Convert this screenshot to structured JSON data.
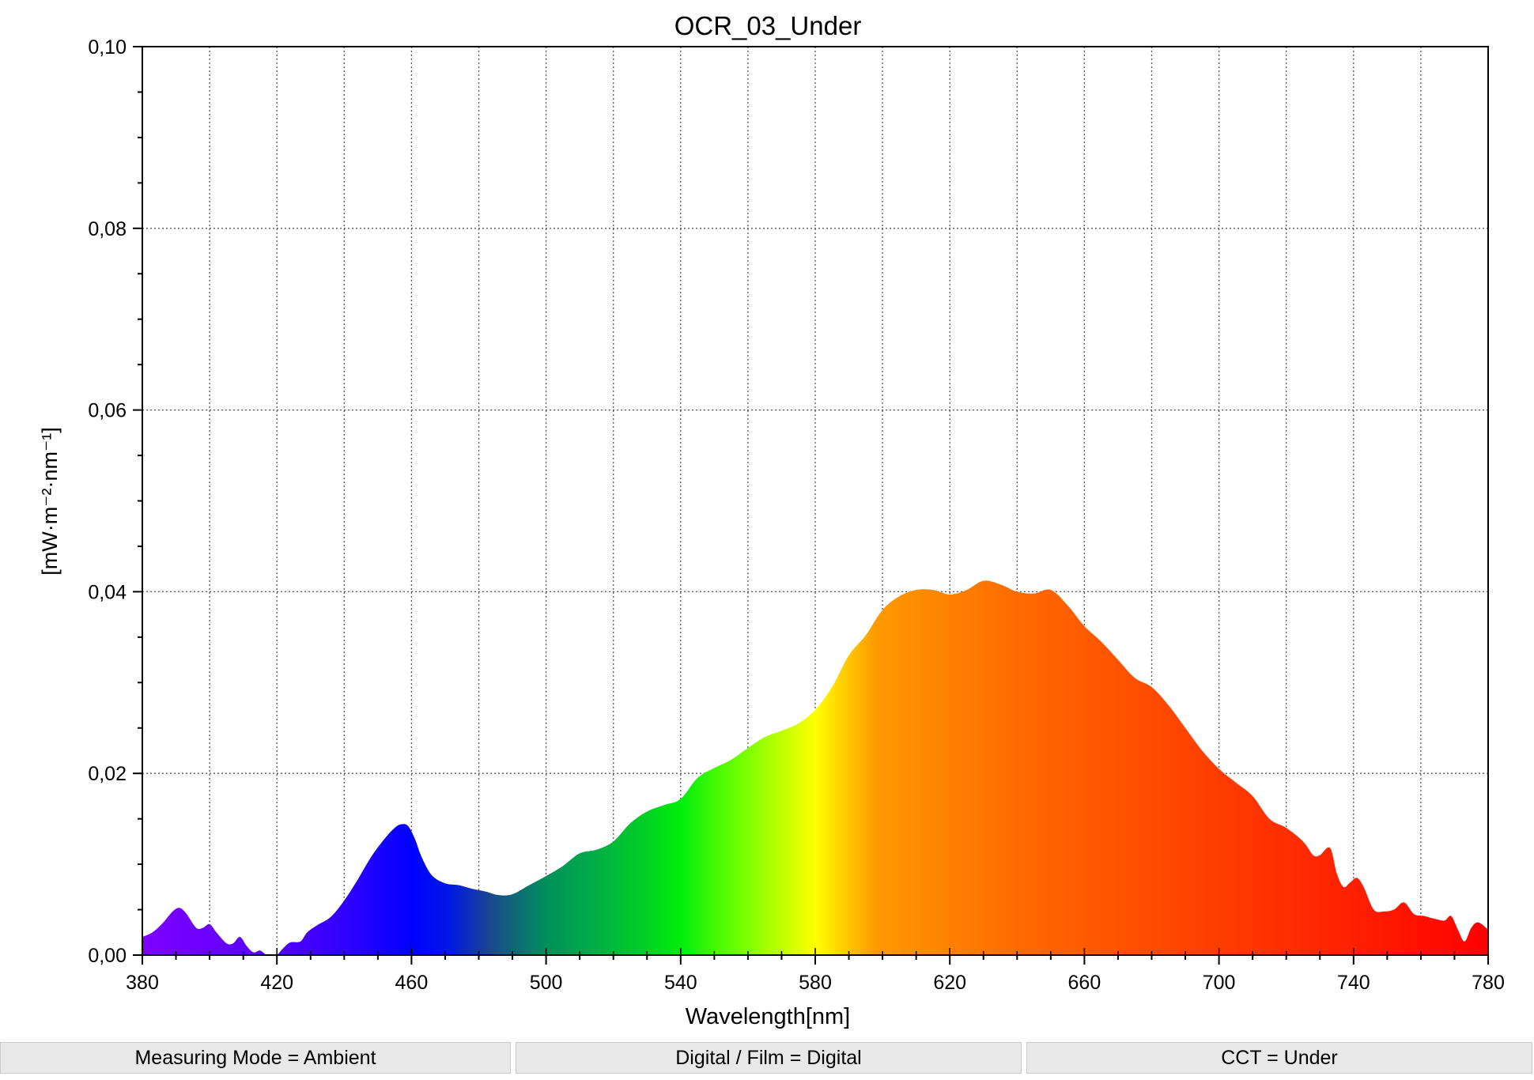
{
  "chart_data": {
    "type": "area",
    "title": "OCR_03_Under",
    "xlabel": "Wavelength[nm]",
    "ylabel": "[mW·m⁻²·nm⁻¹]",
    "xlim": [
      380,
      780
    ],
    "ylim": [
      0,
      0.1
    ],
    "x_ticks": [
      380,
      420,
      460,
      500,
      540,
      580,
      620,
      660,
      700,
      740,
      780
    ],
    "x_tick_labels": [
      "380",
      "420",
      "460",
      "500",
      "540",
      "580",
      "620",
      "660",
      "700",
      "740",
      "780"
    ],
    "y_ticks": [
      0,
      0.02,
      0.04,
      0.06,
      0.08,
      0.1
    ],
    "y_tick_labels": [
      "0,00",
      "0,02",
      "0,04",
      "0,06",
      "0,08",
      "0,10"
    ],
    "grid": true,
    "fill": "visible-spectrum gradient",
    "x": [
      380,
      383,
      386,
      389,
      391,
      393,
      396,
      398,
      400,
      402,
      405,
      407,
      409,
      411,
      413,
      415,
      417,
      419,
      420,
      422,
      424,
      427,
      429,
      432,
      436,
      440,
      444,
      448,
      452,
      455,
      457,
      459,
      461,
      463,
      466,
      470,
      474,
      478,
      482,
      486,
      490,
      495,
      500,
      505,
      510,
      515,
      520,
      525,
      530,
      535,
      540,
      545,
      550,
      555,
      560,
      565,
      570,
      575,
      580,
      585,
      590,
      595,
      600,
      605,
      610,
      615,
      620,
      625,
      630,
      635,
      640,
      645,
      650,
      655,
      660,
      665,
      670,
      675,
      680,
      685,
      690,
      695,
      700,
      705,
      710,
      715,
      720,
      725,
      728,
      730,
      733,
      735,
      737,
      739,
      741,
      743,
      746,
      749,
      752,
      755,
      758,
      761,
      764,
      767,
      769,
      771,
      773,
      775,
      777,
      780
    ],
    "values": [
      0.002,
      0.0025,
      0.0035,
      0.0048,
      0.0052,
      0.0046,
      0.003,
      0.003,
      0.0034,
      0.0025,
      0.0013,
      0.0013,
      0.002,
      0.001,
      0.0003,
      0.0005,
      0.0,
      0.0,
      0.0,
      0.0008,
      0.0014,
      0.0015,
      0.0025,
      0.0033,
      0.0042,
      0.006,
      0.0083,
      0.0108,
      0.0128,
      0.014,
      0.0144,
      0.0142,
      0.0128,
      0.0108,
      0.0088,
      0.0079,
      0.0077,
      0.0073,
      0.007,
      0.0066,
      0.0067,
      0.0077,
      0.0087,
      0.0098,
      0.0112,
      0.0116,
      0.0125,
      0.0145,
      0.0158,
      0.0165,
      0.0172,
      0.0195,
      0.0206,
      0.0215,
      0.0228,
      0.024,
      0.0247,
      0.0255,
      0.027,
      0.0295,
      0.033,
      0.0352,
      0.038,
      0.0395,
      0.0402,
      0.0402,
      0.0397,
      0.0402,
      0.0412,
      0.0408,
      0.04,
      0.0398,
      0.0402,
      0.0385,
      0.0362,
      0.0345,
      0.0325,
      0.0305,
      0.0295,
      0.0275,
      0.025,
      0.0225,
      0.0205,
      0.019,
      0.0175,
      0.015,
      0.014,
      0.0125,
      0.011,
      0.011,
      0.0118,
      0.009,
      0.0075,
      0.008,
      0.0085,
      0.0075,
      0.005,
      0.0048,
      0.005,
      0.0058,
      0.0045,
      0.0043,
      0.004,
      0.0038,
      0.0043,
      0.0028,
      0.0015,
      0.003,
      0.0036,
      0.0028
    ]
  },
  "status": {
    "measuring_mode": "Measuring Mode = Ambient",
    "digital_film": "Digital / Film = Digital",
    "cct": "CCT = Under"
  }
}
